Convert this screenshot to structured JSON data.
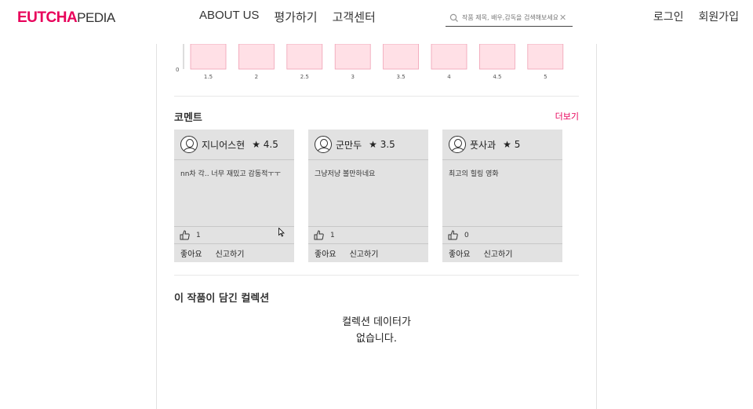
{
  "header": {
    "logo_primary": "EUTCHA",
    "logo_secondary": "PEDIA",
    "nav": [
      "ABOUT US",
      "평가하기",
      "고객센터"
    ],
    "search": {
      "placeholder": "작품 제목, 배우,감독을 검색해보세요.",
      "value": ""
    },
    "login": "로그인",
    "signup": "회원가입"
  },
  "chart_data": {
    "type": "bar",
    "categories": [
      "1.5",
      "2",
      "2.5",
      "3",
      "3.5",
      "4",
      "4.5",
      "5"
    ],
    "y_tick_label": "0",
    "colors": {
      "bar_fill": "#ffe0e6",
      "bar_stroke": "#f0a0b4"
    }
  },
  "comments": {
    "title": "코멘트",
    "more": "더보기",
    "items": [
      {
        "user": "지니어스현",
        "rating": "★ 4.5",
        "text": "nn차 각.. 너무 재밌고 감동적ㅜㅜ",
        "likes": "1",
        "like_label": "좋아요",
        "report_label": "신고하기"
      },
      {
        "user": "군만두",
        "rating": "★ 3.5",
        "text": "그냥저냥 볼만하네요",
        "likes": "1",
        "like_label": "좋아요",
        "report_label": "신고하기"
      },
      {
        "user": "풋사과",
        "rating": "★ 5",
        "text": "최고의 힐링 영화",
        "likes": "0",
        "like_label": "좋아요",
        "report_label": "신고하기"
      }
    ]
  },
  "collections": {
    "title": "이 작품이 담긴 컬렉션",
    "empty_line1": "컬렉션 데이터가",
    "empty_line2": "없습니다."
  }
}
